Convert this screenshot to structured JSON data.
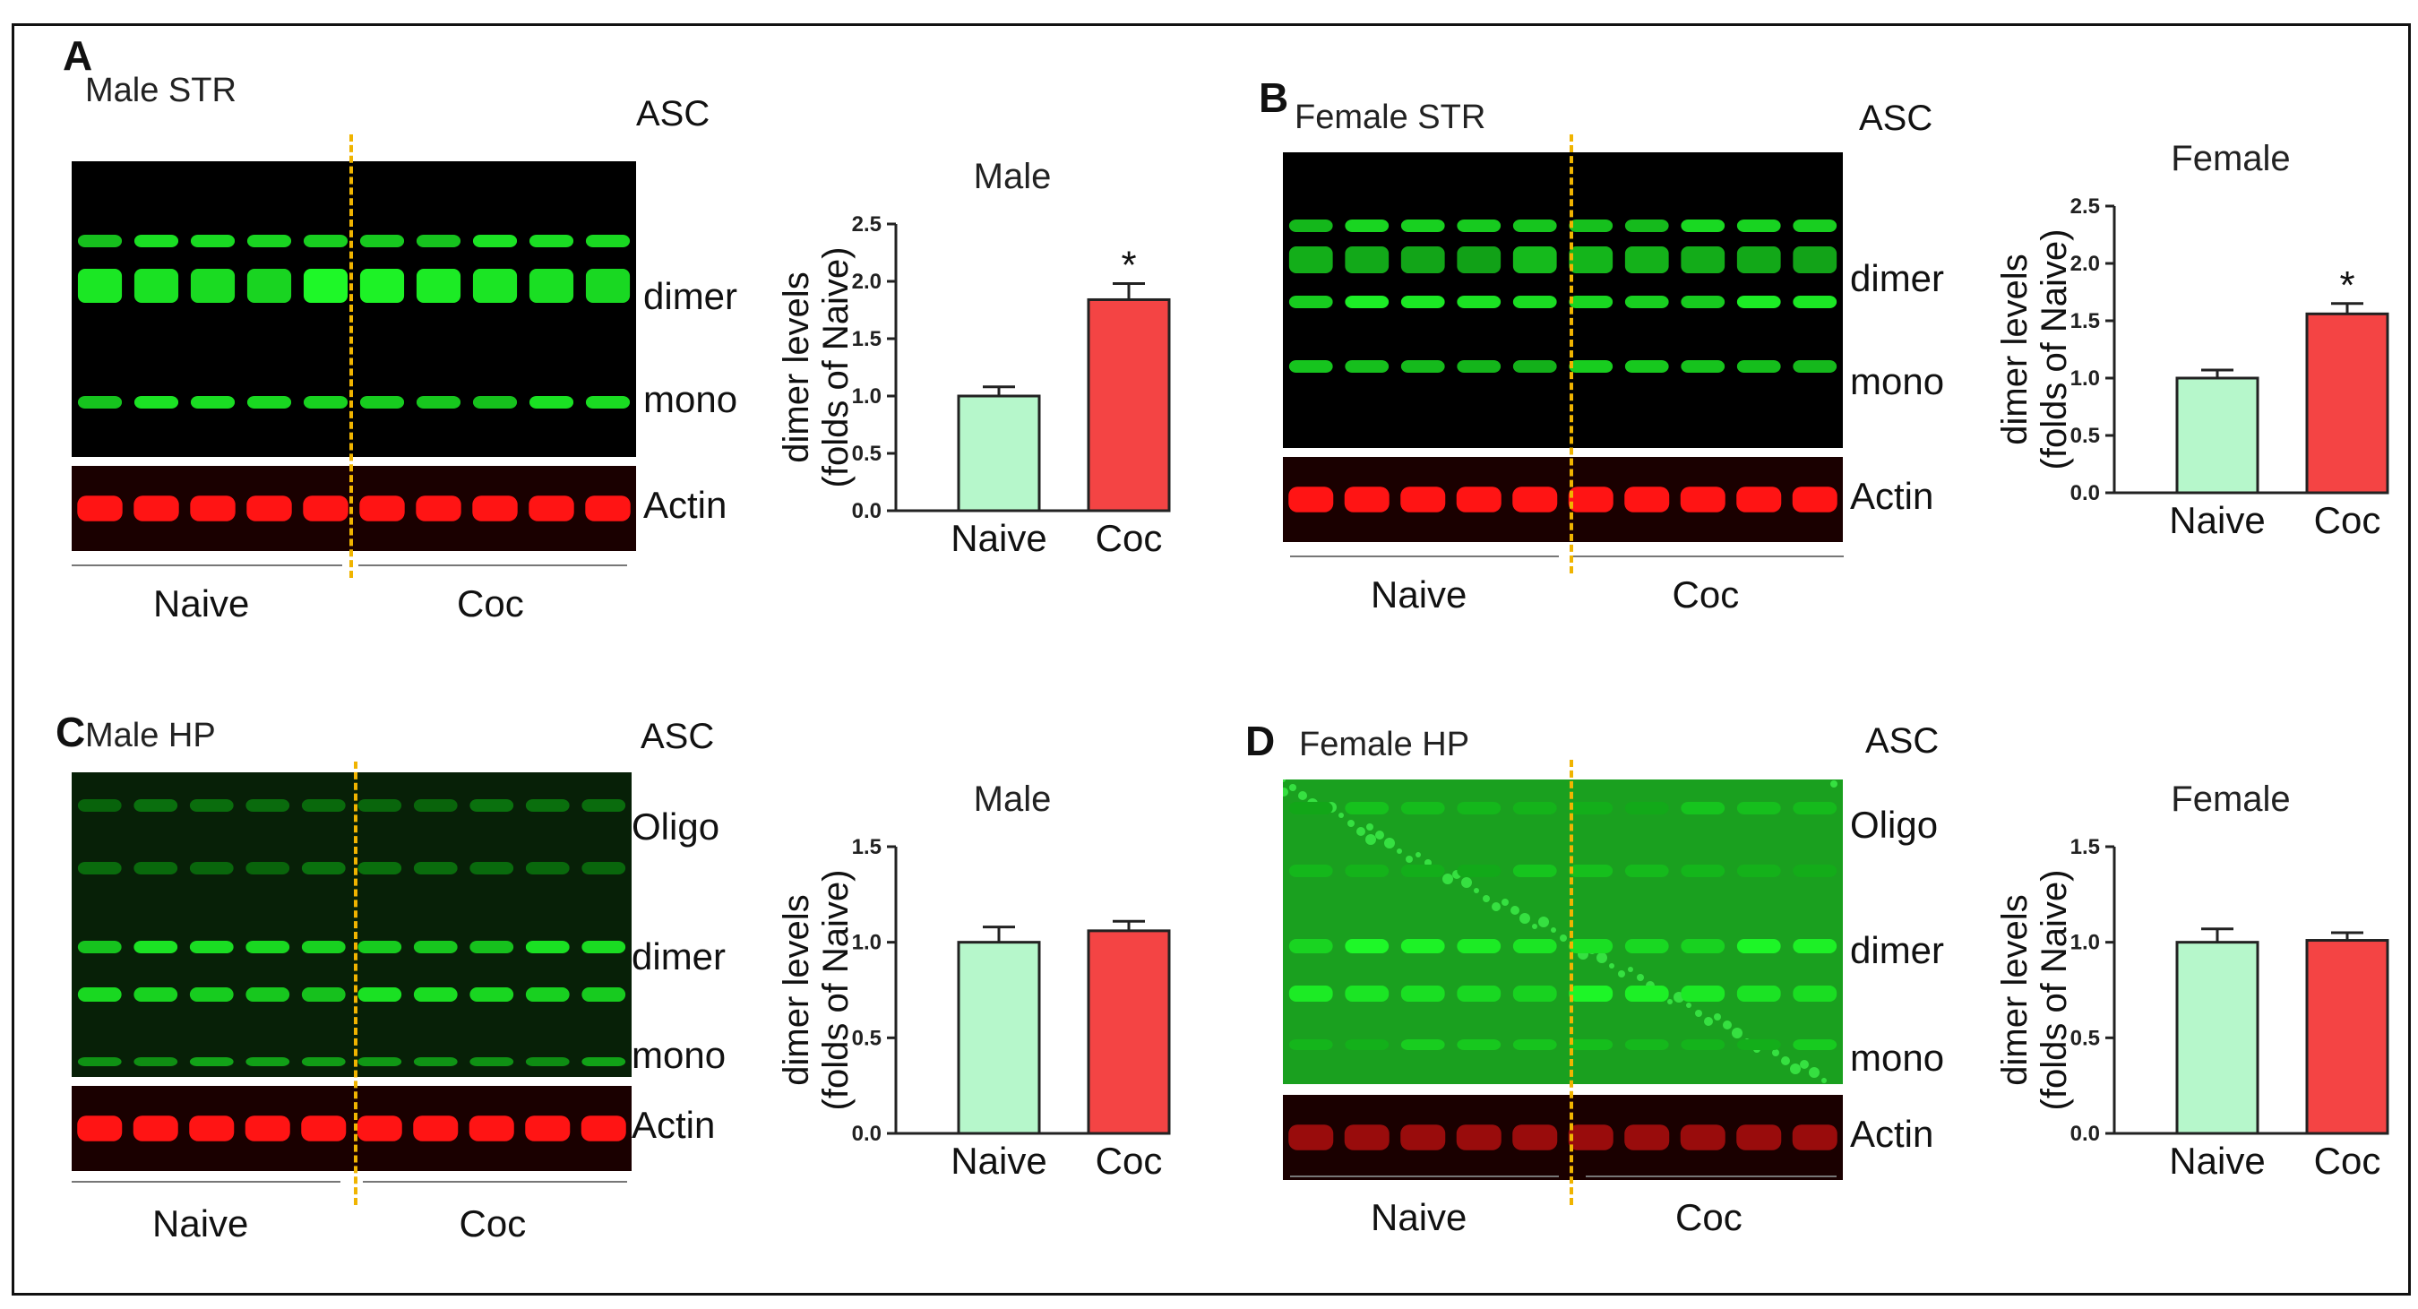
{
  "panels": [
    {
      "letter": "A",
      "blot_title": "Male STR",
      "protein": "ASC",
      "bands": [
        "dimer",
        "mono"
      ],
      "loading_control": "Actin",
      "groups": [
        "Naive",
        "Coc"
      ],
      "chart_title": "Male",
      "ylabel_line1": "dimer levels",
      "ylabel_line2": "(folds of Naive)",
      "significance": "*"
    },
    {
      "letter": "B",
      "blot_title": "Female STR",
      "protein": "ASC",
      "bands": [
        "dimer",
        "mono"
      ],
      "loading_control": "Actin",
      "groups": [
        "Naive",
        "Coc"
      ],
      "chart_title": "Female",
      "ylabel_line1": "dimer levels",
      "ylabel_line2": "(folds of Naive)",
      "significance": "*"
    },
    {
      "letter": "C",
      "blot_title": "Male HP",
      "protein": "ASC",
      "bands": [
        "Oligo",
        "dimer",
        "mono"
      ],
      "loading_control": "Actin",
      "groups": [
        "Naive",
        "Coc"
      ],
      "chart_title": "Male",
      "ylabel_line1": "dimer levels",
      "ylabel_line2": "(folds of Naive)",
      "significance": ""
    },
    {
      "letter": "D",
      "blot_title": "Female HP",
      "protein": "ASC",
      "bands": [
        "Oligo",
        "dimer",
        "mono"
      ],
      "loading_control": "Actin",
      "groups": [
        "Naive",
        "Coc"
      ],
      "chart_title": "Female",
      "ylabel_line1": "dimer levels",
      "ylabel_line2": "(folds of Naive)",
      "significance": ""
    }
  ],
  "colors": {
    "naive_bar": "#b6f7cb",
    "coc_bar": "#f44444",
    "blot_green": "#22d42e",
    "actin_red": "#ff1a1a",
    "divider": "#f0b400"
  },
  "chart_data": [
    {
      "type": "bar",
      "title": "Male",
      "categories": [
        "Naive",
        "Coc"
      ],
      "values": [
        1.0,
        1.84
      ],
      "errors": [
        0.08,
        0.14
      ],
      "ylim": [
        0,
        2.5
      ],
      "yticks": [
        "0.0",
        "0.5",
        "1.0",
        "1.5",
        "2.0",
        "2.5"
      ],
      "ylabel": "dimer levels (folds of Naive)"
    },
    {
      "type": "bar",
      "title": "Female",
      "categories": [
        "Naive",
        "Coc"
      ],
      "values": [
        1.0,
        1.56
      ],
      "errors": [
        0.07,
        0.09
      ],
      "ylim": [
        0,
        2.5
      ],
      "yticks": [
        "0.0",
        "0.5",
        "1.0",
        "1.5",
        "2.0",
        "2.5"
      ],
      "ylabel": "dimer levels (folds of Naive)"
    },
    {
      "type": "bar",
      "title": "Male",
      "categories": [
        "Naive",
        "Coc"
      ],
      "values": [
        1.0,
        1.06
      ],
      "errors": [
        0.08,
        0.05
      ],
      "ylim": [
        0,
        1.5
      ],
      "yticks": [
        "0.0",
        "0.5",
        "1.0",
        "1.5"
      ],
      "ylabel": "dimer levels (folds of Naive)"
    },
    {
      "type": "bar",
      "title": "Female",
      "categories": [
        "Naive",
        "Coc"
      ],
      "values": [
        1.0,
        1.01
      ],
      "errors": [
        0.07,
        0.04
      ],
      "ylim": [
        0,
        1.5
      ],
      "yticks": [
        "0.0",
        "0.5",
        "1.0",
        "1.5"
      ],
      "ylabel": "dimer levels (folds of Naive)"
    }
  ]
}
